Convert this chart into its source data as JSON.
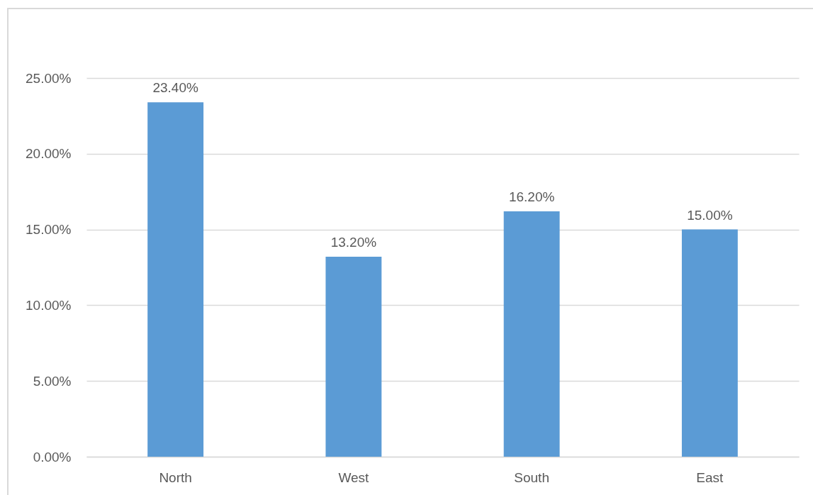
{
  "chart_data": {
    "type": "bar",
    "categories": [
      "North",
      "West",
      "South",
      "East"
    ],
    "values": [
      23.4,
      13.2,
      16.2,
      15.0
    ],
    "color": "#5b9bd5",
    "value_labels": [
      "23.40%",
      "13.20%",
      "16.20%",
      "15.00%"
    ],
    "ylim": [
      0,
      25
    ],
    "yticks": [
      {
        "value": 0,
        "label": "0.00%"
      },
      {
        "value": 5,
        "label": "5.00%"
      },
      {
        "value": 10,
        "label": "10.00%"
      },
      {
        "value": 15,
        "label": "15.00%"
      },
      {
        "value": 20,
        "label": "20.00%"
      },
      {
        "value": 25,
        "label": "25.00%"
      }
    ],
    "grid": "y"
  }
}
